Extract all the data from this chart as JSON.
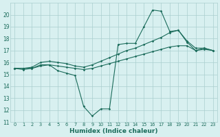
{
  "xlabel": "Humidex (Indice chaleur)",
  "xlim": [
    -0.5,
    23.5
  ],
  "ylim": [
    11,
    21
  ],
  "yticks": [
    11,
    12,
    13,
    14,
    15,
    16,
    17,
    18,
    19,
    20
  ],
  "xticks": [
    0,
    1,
    2,
    3,
    4,
    5,
    6,
    7,
    8,
    9,
    10,
    11,
    12,
    13,
    14,
    15,
    16,
    17,
    18,
    19,
    20,
    21,
    22,
    23
  ],
  "line_color": "#1a6b5a",
  "bg_color": "#d8f0f0",
  "grid_color": "#aacece",
  "lines": [
    {
      "x": [
        0,
        1,
        2,
        3,
        4,
        5,
        6,
        7,
        8,
        9,
        10,
        11,
        12,
        13,
        14,
        15,
        16,
        17,
        18,
        19,
        20,
        21,
        22,
        23
      ],
      "y": [
        15.5,
        15.4,
        15.5,
        15.8,
        15.8,
        15.3,
        15.1,
        14.9,
        12.3,
        11.5,
        12.1,
        12.1,
        17.5,
        17.6,
        17.6,
        19.0,
        20.4,
        20.3,
        18.6,
        18.7,
        17.7,
        17.0,
        17.2,
        17.0
      ]
    },
    {
      "x": [
        0,
        1,
        2,
        3,
        4,
        5,
        6,
        7,
        8,
        9,
        10,
        11,
        12,
        13,
        14,
        15,
        16,
        17,
        18,
        19,
        20,
        21,
        22,
        23
      ],
      "y": [
        15.5,
        15.5,
        15.6,
        16.0,
        16.1,
        16.0,
        15.9,
        15.7,
        15.6,
        15.8,
        16.1,
        16.4,
        16.7,
        17.0,
        17.2,
        17.5,
        17.8,
        18.1,
        18.5,
        18.7,
        17.8,
        17.2,
        17.2,
        17.0
      ]
    },
    {
      "x": [
        0,
        1,
        2,
        3,
        4,
        5,
        6,
        7,
        8,
        9,
        10,
        11,
        12,
        13,
        14,
        15,
        16,
        17,
        18,
        19,
        20,
        21,
        22,
        23
      ],
      "y": [
        15.5,
        15.5,
        15.5,
        15.7,
        15.8,
        15.7,
        15.6,
        15.5,
        15.4,
        15.5,
        15.7,
        15.9,
        16.1,
        16.3,
        16.5,
        16.7,
        16.9,
        17.1,
        17.3,
        17.4,
        17.4,
        17.0,
        17.1,
        17.0
      ]
    }
  ]
}
